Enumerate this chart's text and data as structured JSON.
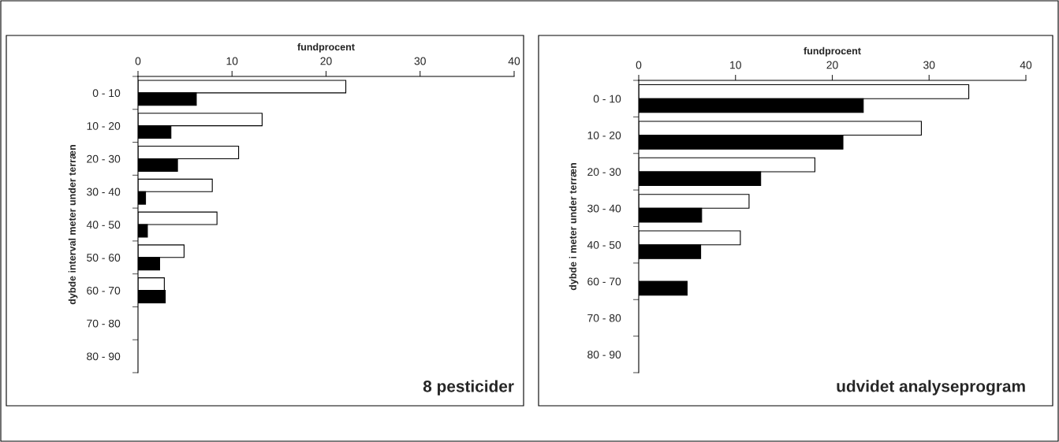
{
  "chart_data": [
    {
      "type": "bar",
      "orientation": "horizontal",
      "xlabel": "fundprocent",
      "ylabel": "dybde interval meter under terræn",
      "categories": [
        "0 - 10",
        "10 - 20",
        "20 - 30",
        "30 - 40",
        "40 - 50",
        "50 - 60",
        "60 - 70",
        "70 - 80",
        "80 - 90"
      ],
      "series": [
        {
          "color": "#ffffff",
          "values": [
            22.1,
            13.2,
            10.7,
            7.9,
            8.4,
            4.9,
            2.8,
            null,
            null
          ]
        },
        {
          "color": "#000000",
          "values": [
            6.2,
            3.5,
            4.2,
            0.8,
            1.0,
            2.3,
            2.9,
            null,
            null
          ]
        }
      ],
      "xlim": [
        0,
        40
      ],
      "xticks": [
        0,
        10,
        20,
        30,
        40
      ],
      "grid": false,
      "annotations": [
        "8 pesticider"
      ]
    },
    {
      "type": "bar",
      "orientation": "horizontal",
      "xlabel": "fundprocent",
      "ylabel": "dybde i meter under terræn",
      "categories": [
        "0 - 10",
        "10 - 20",
        "20 - 30",
        "30 - 40",
        "40 - 50",
        "60 - 70",
        "70 - 80",
        "80 - 90"
      ],
      "series": [
        {
          "color": "#ffffff",
          "values": [
            34.1,
            29.2,
            18.2,
            11.4,
            10.5,
            null,
            null,
            null
          ]
        },
        {
          "color": "#000000",
          "values": [
            23.2,
            21.1,
            12.6,
            6.5,
            6.4,
            5.0,
            null,
            null
          ]
        }
      ],
      "xlim": [
        0,
        40
      ],
      "xticks": [
        0,
        10,
        20,
        30,
        40
      ],
      "grid": false,
      "annotations": [
        "udvidet analyseprogram"
      ]
    }
  ]
}
